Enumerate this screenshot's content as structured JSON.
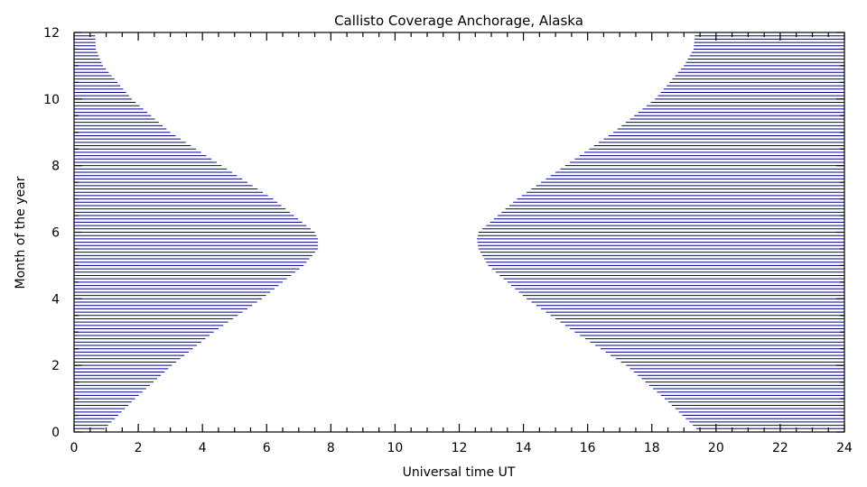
{
  "chart_data": {
    "type": "area",
    "title": "Callisto Coverage Anchorage, Alaska",
    "xlabel": "Universal time UT",
    "ylabel": "Month of the year",
    "xlim": [
      0,
      24
    ],
    "ylim": [
      0,
      12
    ],
    "xticks": [
      0,
      2,
      4,
      6,
      8,
      10,
      12,
      14,
      16,
      18,
      20,
      22,
      24
    ],
    "yticks": [
      0,
      2,
      4,
      6,
      8,
      10,
      12
    ],
    "x_minor_step": 0.5,
    "y_minor_step": 0.5,
    "grid": false,
    "fill_style": "horizontal-hatch",
    "fill_color": "#00008b",
    "month_step": 0.1,
    "series": [
      {
        "name": "",
        "region": "left",
        "month": [
          0,
          1,
          2,
          3,
          4,
          5,
          5.5,
          5.8,
          6,
          7,
          8,
          9,
          10,
          11,
          11.5,
          12
        ],
        "coverage_end_ut": [
          0.85,
          1.9,
          3.05,
          4.35,
          5.85,
          7.15,
          7.6,
          7.6,
          7.5,
          6.2,
          4.6,
          3.0,
          1.8,
          0.9,
          0.68,
          0.65
        ]
      },
      {
        "name": "",
        "region": "right",
        "month": [
          0,
          1,
          2,
          3,
          4,
          5,
          5.5,
          5.8,
          6,
          7,
          8,
          9,
          10,
          11,
          11.5,
          12
        ],
        "coverage_start_ut": [
          19.5,
          18.4,
          17.2,
          15.6,
          14.1,
          12.9,
          12.6,
          12.55,
          12.6,
          13.8,
          15.3,
          16.8,
          18.1,
          19.0,
          19.3,
          19.35
        ]
      }
    ]
  }
}
